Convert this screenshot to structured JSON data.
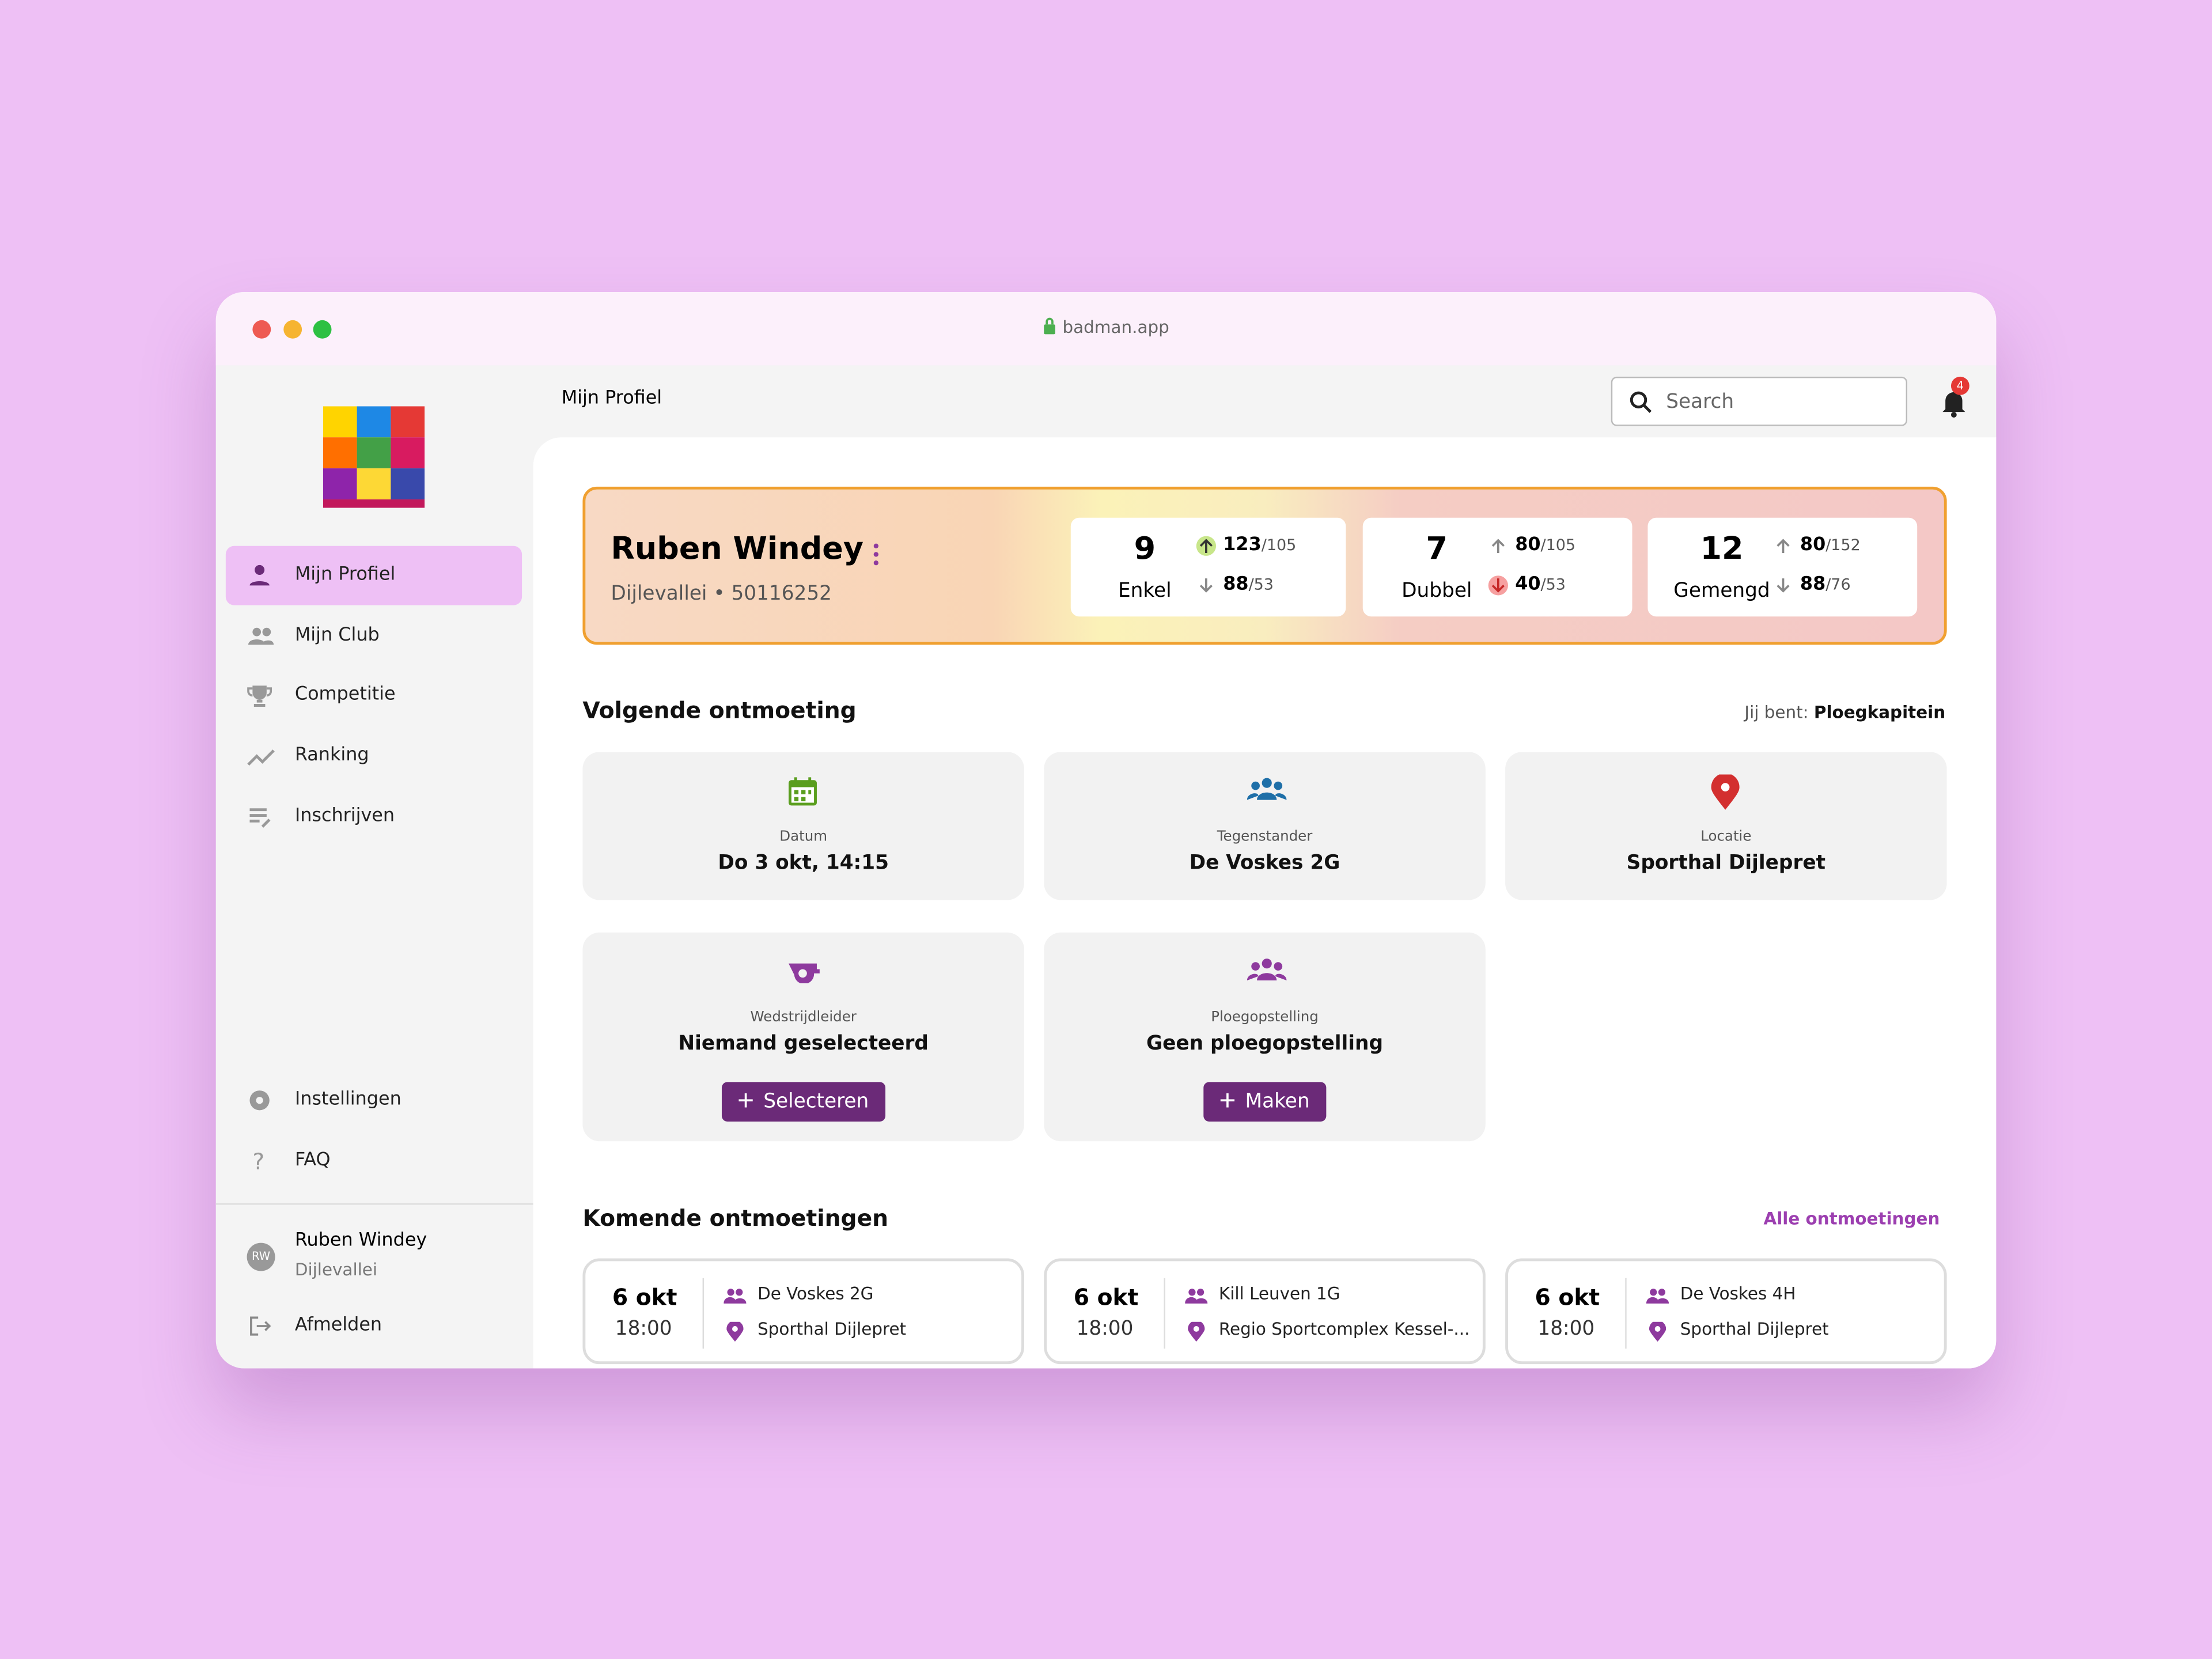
{
  "browser": {
    "url": "badman.app"
  },
  "sidebar": {
    "nav": [
      "Mijn Profiel",
      "Mijn Club",
      "Competitie",
      "Ranking",
      "Inschrijven"
    ],
    "bottom": [
      "Instellingen",
      "FAQ"
    ],
    "user": {
      "initials": "RW",
      "name": "Ruben Windey",
      "club": "Dijlevallei"
    },
    "logout": "Afmelden"
  },
  "header": {
    "title": "Mijn Profiel",
    "search": "Search",
    "notifications": 4
  },
  "profile": {
    "name": "Ruben Windey",
    "subtitle": "Dijlevallei • 50116252",
    "stats": [
      {
        "value": 9,
        "label": "Enkel",
        "up": 123,
        "up_of": "/105",
        "down": 88,
        "down_of": "/53"
      },
      {
        "value": 7,
        "label": "Dubbel",
        "up": 80,
        "up_of": "/105",
        "down": 40,
        "down_of": "/53"
      },
      {
        "value": 12,
        "label": "Gemengd",
        "up": 80,
        "up_of": "/152",
        "down": 88,
        "down_of": "/76"
      }
    ]
  },
  "next_meeting": {
    "title": "Volgende ontmoeting",
    "role_label": "Jij bent:",
    "role": "Ploegkapitein",
    "cards": [
      {
        "label": "Datum",
        "value": "Do 3 okt, 14:15"
      },
      {
        "label": "Tegenstander",
        "value": "De Voskes 2G"
      },
      {
        "label": "Locatie",
        "value": "Sporthal Dijlepret"
      },
      {
        "label": "Wedstrijdleider",
        "value": "Niemand geselecteerd",
        "button": "Selecteren"
      },
      {
        "label": "Ploegopstelling",
        "value": "Geen ploegopstelling",
        "button": "Maken"
      }
    ]
  },
  "upcoming": {
    "title": "Komende ontmoetingen",
    "link": "Alle ontmoetingen",
    "items": [
      {
        "date": "6 okt",
        "time": "18:00",
        "team": "De Voskes 2G",
        "location": "Sporthal Dijlepret"
      },
      {
        "date": "6 okt",
        "time": "18:00",
        "team": "Kill Leuven 1G",
        "location": "Regio Sportcomplex Kessel-..."
      },
      {
        "date": "6 okt",
        "time": "18:00",
        "team": "De Voskes 4H",
        "location": "Sporthal Dijlepret"
      }
    ]
  }
}
